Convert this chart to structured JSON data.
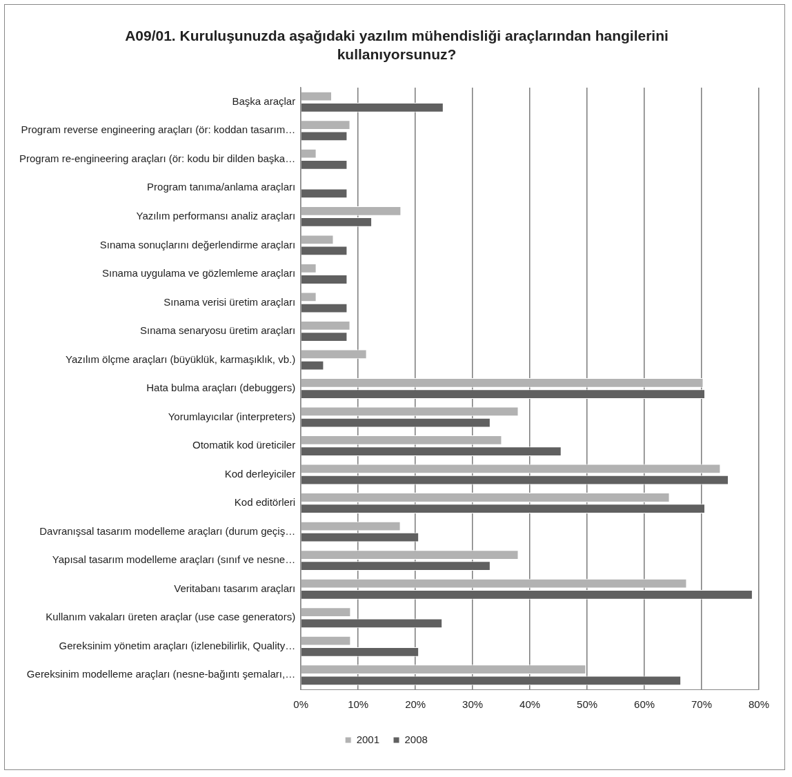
{
  "chart_data": {
    "type": "bar",
    "orientation": "horizontal",
    "title": "A09/01. Kuruluşunuzda aşağıdaki yazılım mühendisliği araçlarından hangilerini kullanıyorsunuz?",
    "categories": [
      "Başka araçlar",
      "Program reverse engineering araçları (ör: koddan tasarım…",
      "Program re-engineering araçları (ör: kodu bir dilden başka…",
      "Program tanıma/anlama araçları",
      "Yazılım performansı analiz araçları",
      "Sınama sonuçlarını değerlendirme araçları",
      "Sınama uygulama ve gözlemleme araçları",
      "Sınama verisi üretim araçları",
      "Sınama senaryosu üretim araçları",
      "Yazılım ölçme araçları (büyüklük, karmaşıklık, vb.)",
      "Hata bulma araçları (debuggers)",
      "Yorumlayıcılar (interpreters)",
      "Otomatik kod üreticiler",
      "Kod derleyiciler",
      "Kod editörleri",
      "Davranışsal tasarım modelleme araçları (durum geçiş…",
      "Yapısal tasarım modelleme araçları (sınıf ve nesne…",
      "Veritabanı tasarım araçları",
      "Kullanım vakaları üreten araçlar (use case generators)",
      "Gereksinim yönetim araçları (izlenebilirlik, Quality…",
      "Gereksinim modelleme araçları (nesne-bağıntı şemaları,…"
    ],
    "series": [
      {
        "name": "2001",
        "color": "#b2b2b2",
        "values": [
          5.4,
          8.6,
          2.7,
          0,
          17.5,
          5.7,
          2.7,
          2.7,
          8.6,
          11.5,
          70.3,
          38.0,
          35.1,
          73.3,
          64.4,
          17.4,
          38.0,
          67.4,
          8.7,
          8.7,
          49.8
        ]
      },
      {
        "name": "2008",
        "color": "#606060",
        "values": [
          24.9,
          8.1,
          8.1,
          8.1,
          12.4,
          8.1,
          8.1,
          8.1,
          8.1,
          4.0,
          70.6,
          33.1,
          45.5,
          74.7,
          70.6,
          20.6,
          33.1,
          78.9,
          24.7,
          20.6,
          66.4
        ]
      }
    ],
    "xlim": [
      0,
      80
    ],
    "xticks": [
      {
        "value": 0,
        "label": "0%"
      },
      {
        "value": 10,
        "label": "10%"
      },
      {
        "value": 20,
        "label": "20%"
      },
      {
        "value": 30,
        "label": "30%"
      },
      {
        "value": 40,
        "label": "40%"
      },
      {
        "value": 50,
        "label": "50%"
      },
      {
        "value": 60,
        "label": "60%"
      },
      {
        "value": 70,
        "label": "70%"
      },
      {
        "value": 80,
        "label": "80%"
      }
    ],
    "grid": "x",
    "legend": "bottom"
  }
}
